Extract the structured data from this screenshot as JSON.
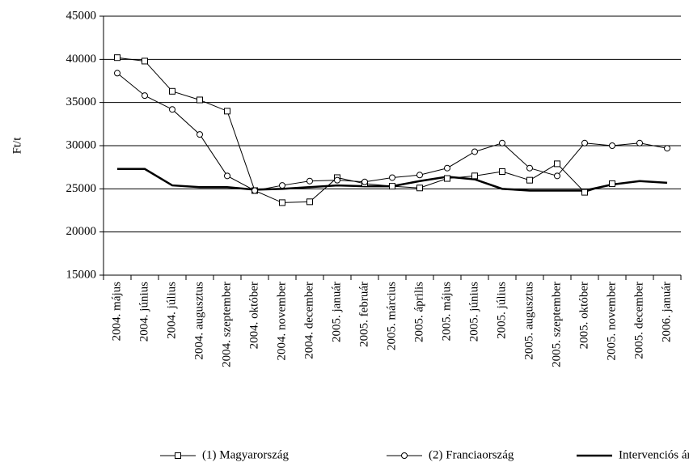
{
  "chart_data": {
    "type": "line",
    "y_label": "Ft/t",
    "categories": [
      "2004. május",
      "2004. június",
      "2004. július",
      "2004. augusztus",
      "2004. szeptember",
      "2004. október",
      "2004. november",
      "2004. december",
      "2005. január",
      "2005. február",
      "2005. március",
      "2005. április",
      "2005. május",
      "2005. június",
      "2005. július",
      "2005. augusztus",
      "2005. szeptember",
      "2005. október",
      "2005. november",
      "2005. december",
      "2006. január"
    ],
    "series": [
      {
        "name": "(1) Magyarország",
        "color": "#000000",
        "marker": "square",
        "width": 1,
        "values": [
          40200,
          39800,
          36300,
          35300,
          34000,
          24800,
          23400,
          23500,
          26300,
          25600,
          25300,
          25100,
          26200,
          26500,
          27000,
          26000,
          27900,
          24600,
          25600,
          null,
          null
        ]
      },
      {
        "name": "(2) Franciaország",
        "color": "#000000",
        "marker": "circle",
        "width": 1,
        "values": [
          38400,
          35800,
          34200,
          31300,
          26500,
          24800,
          25400,
          25900,
          26000,
          25800,
          26300,
          26600,
          27400,
          29300,
          30300,
          27400,
          26500,
          30300,
          30000,
          30300,
          29700
        ]
      },
      {
        "name": "Intervenciós ár",
        "color": "#000000",
        "marker": "none",
        "width": 2.5,
        "values": [
          27300,
          27300,
          25400,
          25200,
          25200,
          24900,
          25000,
          25200,
          25400,
          25300,
          25300,
          25900,
          26400,
          26100,
          25000,
          24800,
          24800,
          24800,
          25500,
          25900,
          25700
        ]
      }
    ],
    "ylim": [
      15000,
      45000
    ],
    "yticks": [
      15000,
      20000,
      25000,
      30000,
      35000,
      40000,
      45000
    ],
    "grid": true,
    "legend": "bottom"
  }
}
